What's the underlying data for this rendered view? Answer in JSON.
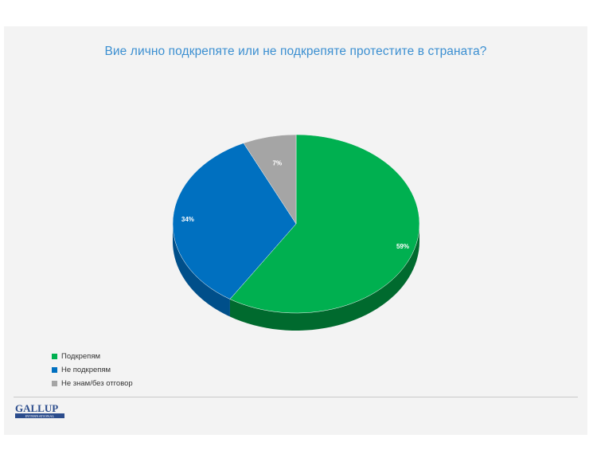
{
  "chart_data": {
    "type": "pie",
    "title": "Вие лично подкрепяте или не подкрепяте протестите в страната?",
    "categories": [
      "Подкрепям",
      "Не подкрепям",
      "Не знам/без отговор"
    ],
    "values": [
      59,
      34,
      7
    ],
    "data_labels": [
      "59%",
      "34%",
      "7%"
    ],
    "colors": [
      "#00b050",
      "#0070c0",
      "#a5a5a5"
    ],
    "side_colors": [
      "#006a2e",
      "#004f8a",
      "#6e6e6e"
    ],
    "legend_position": "bottom-left",
    "style": "3d"
  },
  "footer": {
    "logo_text": "GALLUP",
    "logo_subtext": "INTERNATIONAL"
  }
}
